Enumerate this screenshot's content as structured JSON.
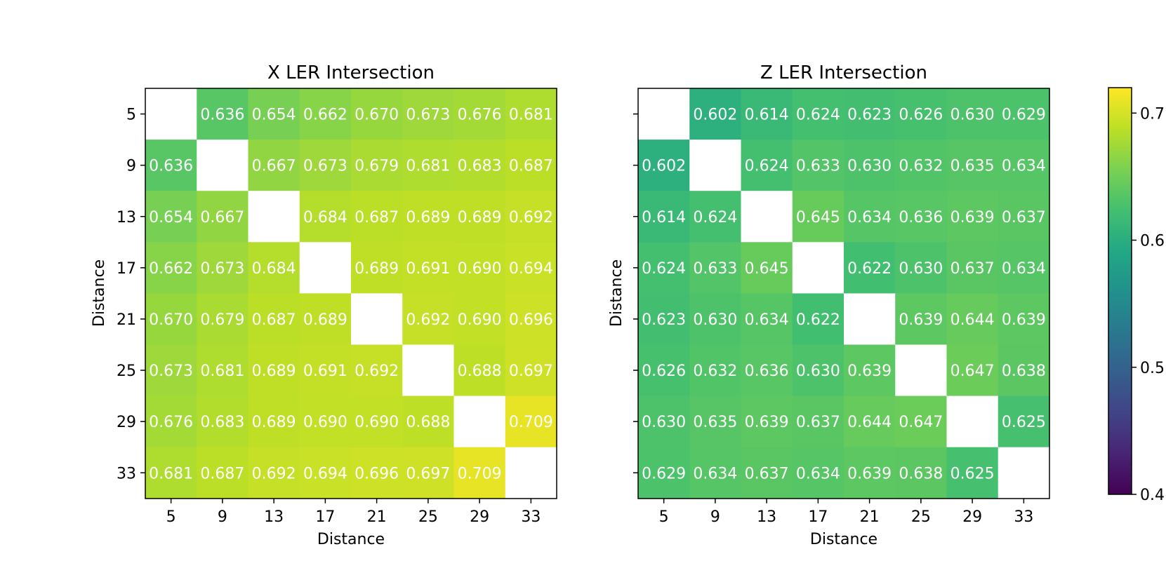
{
  "chart_data": [
    {
      "type": "heatmap",
      "title": "X LER Intersection",
      "xlabel": "Distance",
      "ylabel": "Distance",
      "x_ticks": [
        "5",
        "9",
        "13",
        "17",
        "21",
        "25",
        "29",
        "33"
      ],
      "y_ticks": [
        "5",
        "9",
        "13",
        "17",
        "21",
        "25",
        "29",
        "33"
      ],
      "values": [
        [
          null,
          0.636,
          0.654,
          0.662,
          0.67,
          0.673,
          0.676,
          0.681
        ],
        [
          0.636,
          null,
          0.667,
          0.673,
          0.679,
          0.681,
          0.683,
          0.687
        ],
        [
          0.654,
          0.667,
          null,
          0.684,
          0.687,
          0.689,
          0.689,
          0.692
        ],
        [
          0.662,
          0.673,
          0.684,
          null,
          0.689,
          0.691,
          0.69,
          0.694
        ],
        [
          0.67,
          0.679,
          0.687,
          0.689,
          null,
          0.692,
          0.69,
          0.696
        ],
        [
          0.673,
          0.681,
          0.689,
          0.691,
          0.692,
          null,
          0.688,
          0.697
        ],
        [
          0.676,
          0.683,
          0.689,
          0.69,
          0.69,
          0.688,
          null,
          0.709
        ],
        [
          0.681,
          0.687,
          0.692,
          0.694,
          0.696,
          0.697,
          0.709,
          null
        ]
      ],
      "labels": [
        [
          "",
          "0.636",
          "0.654",
          "0.662",
          "0.670",
          "0.673",
          "0.676",
          "0.681"
        ],
        [
          "0.636",
          "",
          "0.667",
          "0.673",
          "0.679",
          "0.681",
          "0.683",
          "0.687"
        ],
        [
          "0.654",
          "0.667",
          "",
          "0.684",
          "0.687",
          "0.689",
          "0.689",
          "0.692"
        ],
        [
          "0.662",
          "0.673",
          "0.684",
          "",
          "0.689",
          "0.691",
          "0.690",
          "0.694"
        ],
        [
          "0.670",
          "0.679",
          "0.687",
          "0.689",
          "",
          "0.692",
          "0.690",
          "0.696"
        ],
        [
          "0.673",
          "0.681",
          "0.689",
          "0.691",
          "0.692",
          "",
          "0.688",
          "0.697"
        ],
        [
          "0.676",
          "0.683",
          "0.689",
          "0.690",
          "0.690",
          "0.688",
          "",
          "0.709"
        ],
        [
          "0.681",
          "0.687",
          "0.692",
          "0.694",
          "0.696",
          "0.697",
          "0.709",
          ""
        ]
      ]
    },
    {
      "type": "heatmap",
      "title": "Z LER Intersection",
      "xlabel": "Distance",
      "ylabel": "Distance",
      "x_ticks": [
        "5",
        "9",
        "13",
        "17",
        "21",
        "25",
        "29",
        "33"
      ],
      "y_ticks": [
        "5",
        "9",
        "13",
        "17",
        "21",
        "25",
        "29",
        "33"
      ],
      "values": [
        [
          null,
          0.602,
          0.614,
          0.624,
          0.623,
          0.626,
          0.63,
          0.629
        ],
        [
          0.602,
          null,
          0.624,
          0.633,
          0.63,
          0.632,
          0.635,
          0.634
        ],
        [
          0.614,
          0.624,
          null,
          0.645,
          0.634,
          0.636,
          0.639,
          0.637
        ],
        [
          0.624,
          0.633,
          0.645,
          null,
          0.622,
          0.63,
          0.637,
          0.634
        ],
        [
          0.623,
          0.63,
          0.634,
          0.622,
          null,
          0.639,
          0.644,
          0.639
        ],
        [
          0.626,
          0.632,
          0.636,
          0.63,
          0.639,
          null,
          0.647,
          0.638
        ],
        [
          0.63,
          0.635,
          0.639,
          0.637,
          0.644,
          0.647,
          null,
          0.625
        ],
        [
          0.629,
          0.634,
          0.637,
          0.634,
          0.639,
          0.638,
          0.625,
          null
        ]
      ],
      "labels": [
        [
          "",
          "0.602",
          "0.614",
          "0.624",
          "0.623",
          "0.626",
          "0.630",
          "0.629"
        ],
        [
          "0.602",
          "",
          "0.624",
          "0.633",
          "0.630",
          "0.632",
          "0.635",
          "0.634"
        ],
        [
          "0.614",
          "0.624",
          "",
          "0.645",
          "0.634",
          "0.636",
          "0.639",
          "0.637"
        ],
        [
          "0.624",
          "0.633",
          "0.645",
          "",
          "0.622",
          "0.630",
          "0.637",
          "0.634"
        ],
        [
          "0.623",
          "0.630",
          "0.634",
          "0.622",
          "",
          "0.639",
          "0.644",
          "0.639"
        ],
        [
          "0.626",
          "0.632",
          "0.636",
          "0.630",
          "0.639",
          "",
          "0.647",
          "0.638"
        ],
        [
          "0.630",
          "0.635",
          "0.639",
          "0.637",
          "0.644",
          "0.647",
          "",
          "0.625"
        ],
        [
          "0.629",
          "0.634",
          "0.637",
          "0.634",
          "0.639",
          "0.638",
          "0.625",
          ""
        ]
      ]
    }
  ],
  "colorbar": {
    "colormap": "viridis",
    "range": [
      0.4,
      0.72
    ],
    "tick_values": [
      0.4,
      0.5,
      0.6,
      0.7
    ],
    "tick_labels": [
      "0.4",
      "0.5",
      "0.6",
      "0.7"
    ]
  },
  "colors": {
    "missing_cell": "#ffffff",
    "cell_text": "#ffffff",
    "axis": "#000000"
  }
}
